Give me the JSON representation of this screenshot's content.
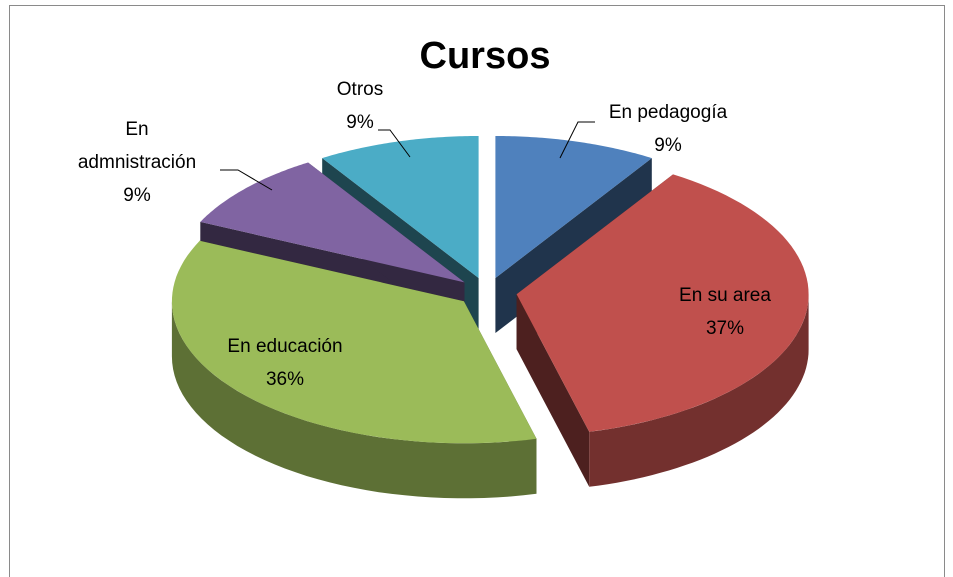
{
  "chart_data": {
    "type": "pie",
    "title": "Cursos",
    "categories": [
      "En pedagogía",
      "En su area",
      "En educación",
      "En admnistración",
      "Otros"
    ],
    "values": [
      9,
      37,
      36,
      9,
      9
    ],
    "value_labels": [
      "9%",
      "37%",
      "36%",
      "9%",
      "9%"
    ],
    "colors": [
      "#4f81bd",
      "#c0504d",
      "#9bbb59",
      "#8064a2",
      "#4bacc6"
    ]
  }
}
